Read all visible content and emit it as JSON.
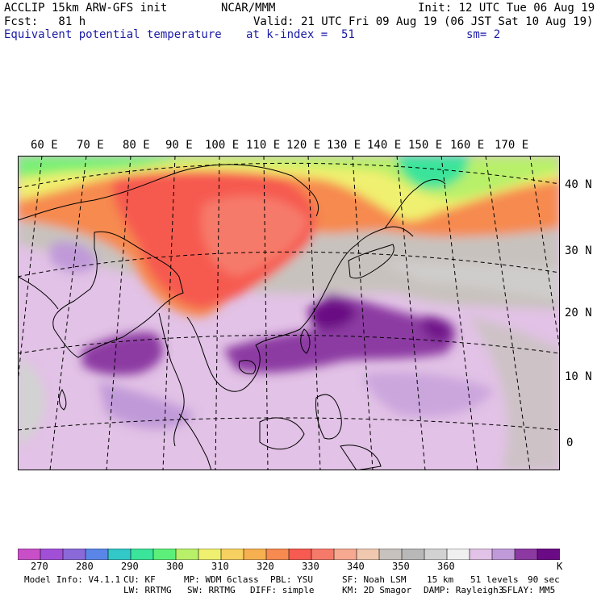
{
  "header": {
    "model": "ACCLIP 15km ARW-GFS init",
    "org": "NCAR/MMM",
    "init": "Init: 12 UTC Tue 06 Aug 19",
    "fcst": "Fcst:   81 h",
    "valid": "Valid: 21 UTC Fri 09 Aug 19 (06 JST Sat 10 Aug 19)",
    "field": "Equivalent potential temperature",
    "level": "at k-index =  51",
    "smooth": "sm= 2"
  },
  "map": {
    "lon_labels": [
      "60 E",
      "70 E",
      "80 E",
      "90 E",
      "100 E",
      "110 E",
      "120 E",
      "130 E",
      "140 E",
      "150 E",
      "160 E",
      "170 E"
    ],
    "lat_labels": [
      "40 N",
      "30 N",
      "20 N",
      "10 N",
      "0"
    ]
  },
  "colorbar": {
    "colors": [
      "#c84fc8",
      "#a24fd8",
      "#8a6ad8",
      "#5a86e8",
      "#32c8c8",
      "#3ae49a",
      "#5cf07a",
      "#b8f06a",
      "#f0f070",
      "#f6d060",
      "#f6b050",
      "#f68a50",
      "#f65a50",
      "#f67a6a",
      "#f6a890",
      "#f0c8b0",
      "#c8c2be",
      "#b8b8b8",
      "#d2d2d2",
      "#f0f0f0",
      "#e2c2e6",
      "#c09ad8",
      "#8c3aa2",
      "#6a0a84"
    ],
    "labels": [
      "270",
      "280",
      "290",
      "300",
      "310",
      "320",
      "330",
      "340",
      "350",
      "360"
    ],
    "unit": "K"
  },
  "footer": {
    "line1": [
      "Model Info: V4.1.1",
      "CU: KF",
      "MP: WDM 6class",
      "PBL: YSU",
      "SF: Noah LSM",
      "15 km",
      "51 levels",
      "90 sec"
    ],
    "line2": [
      "LW: RRTMG",
      "SW: RRTMG",
      "DIFF: simple",
      "KM: 2D Smagor",
      "DAMP: Rayleigh3",
      "SFLAY: MM5"
    ]
  }
}
